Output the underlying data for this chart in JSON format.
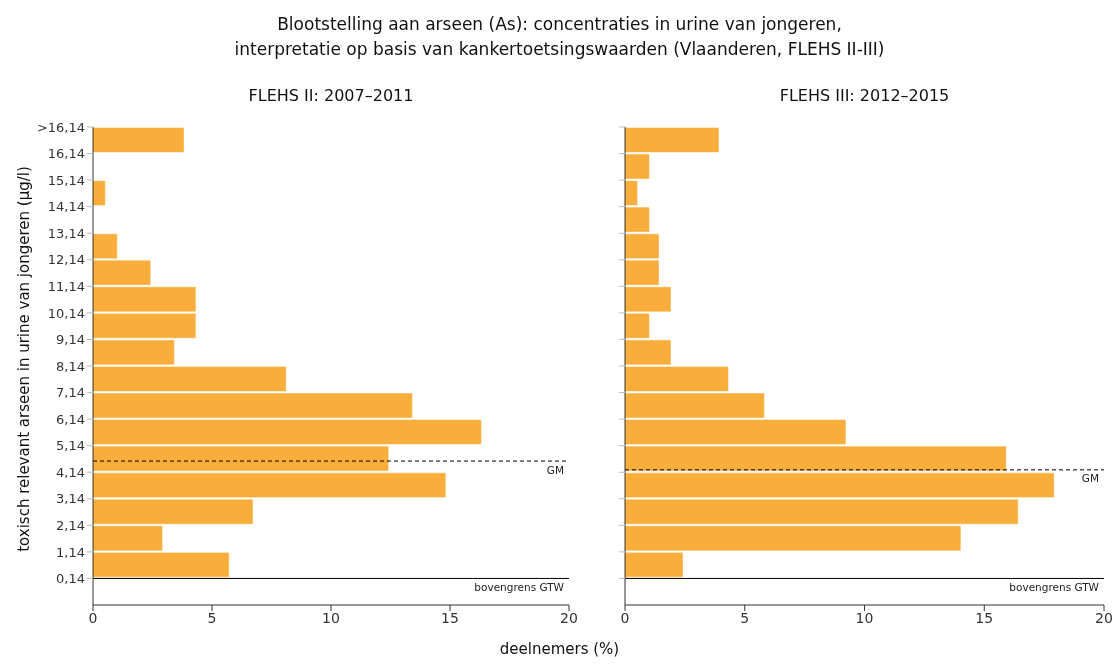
{
  "chart_data": [
    {
      "type": "histogram",
      "orientation": "horizontal",
      "title": "Blootstelling aan arseen (As): concentraties in urine van jongeren,\ninterpretatie op basis van kankertoetsingswaarden (Vlaanderen, FLEHS II-III)",
      "subtitle": "FLEHS II: 2007–2011",
      "xlabel": "deelnemers (%)",
      "ylabel": "toxisch relevant arseen in urine van jongeren (µg/l)",
      "color": "#f9ae3b",
      "bins": [
        0.14,
        1.14,
        2.14,
        3.14,
        4.14,
        5.14,
        6.14,
        7.14,
        8.14,
        9.14,
        10.14,
        11.14,
        12.14,
        13.14,
        14.14,
        15.14,
        16.14,
        17.14
      ],
      "values": [
        5.7,
        2.9,
        6.7,
        14.8,
        12.4,
        16.3,
        13.4,
        8.1,
        3.4,
        4.3,
        4.3,
        2.4,
        1.0,
        0,
        0.5,
        0,
        3.8
      ],
      "xlim": [
        0,
        20
      ],
      "xticks": [
        0,
        5,
        10,
        15,
        20
      ],
      "ylim": [
        -0.86,
        17.14
      ],
      "yticks": [
        {
          "value": 0.14,
          "label": "0,14"
        },
        {
          "value": 1.14,
          "label": "1,14"
        },
        {
          "value": 2.14,
          "label": "2,14"
        },
        {
          "value": 3.14,
          "label": "3,14"
        },
        {
          "value": 4.14,
          "label": "4,14"
        },
        {
          "value": 5.14,
          "label": "5,14"
        },
        {
          "value": 6.14,
          "label": "6,14"
        },
        {
          "value": 7.14,
          "label": "7,14"
        },
        {
          "value": 8.14,
          "label": "8,14"
        },
        {
          "value": 9.14,
          "label": "9,14"
        },
        {
          "value": 10.14,
          "label": "10,14"
        },
        {
          "value": 11.14,
          "label": "11,14"
        },
        {
          "value": 12.14,
          "label": "12,14"
        },
        {
          "value": 13.14,
          "label": "13,14"
        },
        {
          "value": 14.14,
          "label": "14,14"
        },
        {
          "value": 15.14,
          "label": "15,14"
        },
        {
          "value": 16.14,
          "label": "16,14"
        },
        {
          "value": 17.14,
          "label": ">16,14"
        }
      ],
      "ref_lines": [
        {
          "axis": "y",
          "value": 4.56,
          "label": "GM",
          "line_style": "dashed",
          "color": "#000000"
        },
        {
          "axis": "y",
          "value": 0.14,
          "label": "bovengrens GTW",
          "line_style": "solid",
          "color": "#000000"
        }
      ]
    },
    {
      "type": "histogram",
      "orientation": "horizontal",
      "subtitle": "FLEHS III: 2012–2015",
      "color": "#f9ae3b",
      "tick_labels": "x",
      "bins": [
        0.14,
        1.14,
        2.14,
        3.14,
        4.14,
        5.14,
        6.14,
        7.14,
        8.14,
        9.14,
        10.14,
        11.14,
        12.14,
        13.14,
        14.14,
        15.14,
        16.14,
        17.14
      ],
      "values": [
        2.4,
        14.0,
        16.4,
        17.9,
        15.9,
        9.2,
        5.8,
        4.3,
        1.9,
        1.0,
        1.9,
        1.4,
        1.4,
        1.0,
        0.5,
        1.0,
        3.9
      ],
      "xlim": [
        0,
        20
      ],
      "xticks": [
        0,
        5,
        10,
        15,
        20
      ],
      "ylim": [
        -0.86,
        17.14
      ],
      "yticks": [
        0.14,
        1.14,
        2.14,
        3.14,
        4.14,
        5.14,
        6.14,
        7.14,
        8.14,
        9.14,
        10.14,
        11.14,
        12.14,
        13.14,
        14.14,
        15.14,
        16.14,
        17.14
      ],
      "ref_lines": [
        {
          "axis": "y",
          "value": 4.23,
          "label": "GM",
          "line_style": "dashed",
          "color": "#000000"
        },
        {
          "axis": "y",
          "value": 0.14,
          "label": "bovengrens GTW",
          "line_style": "solid",
          "color": "#000000"
        }
      ]
    }
  ]
}
